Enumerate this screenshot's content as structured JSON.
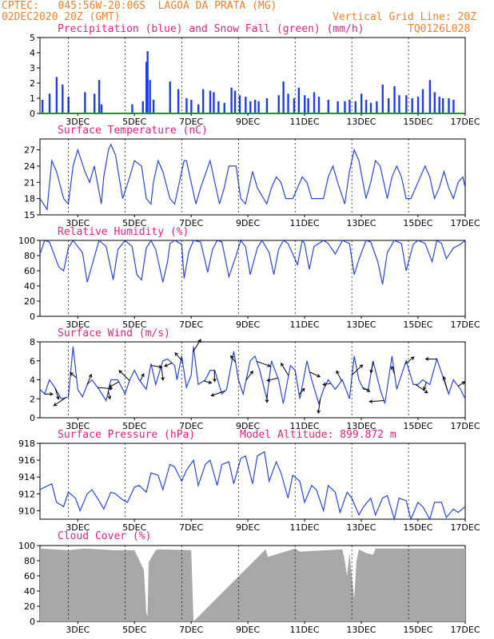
{
  "header": {
    "line1": "CPTEC:   045:56W-20:06S  LAGOA DA PRATA (MG)",
    "line2": "02DEC2020 20Z (GMT)",
    "grid_note": "Vertical Grid Line: 20Z",
    "model_code": "TQ0126L028"
  },
  "colors": {
    "series_line": "#2a45e0",
    "precip_bar": "#1f3df0",
    "snow_line": "#14a014",
    "cloud_fill": "#a8a8a8",
    "header_text": "#f07f2a",
    "title_text": "#e8207a",
    "grid_line": "#000000"
  },
  "x_axis": {
    "hour_start": 20,
    "hour_end": 380,
    "tick_labels": [
      {
        "label": "3DEC",
        "hour": 52
      },
      {
        "label": "5DEC",
        "hour": 100
      },
      {
        "label": "7DEC",
        "hour": 148
      },
      {
        "label": "9DEC",
        "hour": 196
      },
      {
        "label": "11DEC",
        "hour": 244
      },
      {
        "label": "13DEC",
        "hour": 292
      },
      {
        "label": "15DEC",
        "hour": 340
      },
      {
        "label": "17DEC",
        "hour": 380
      }
    ],
    "vertical_grid_hours": [
      44,
      92,
      140,
      188,
      236,
      284,
      332
    ]
  },
  "chart_data": [
    {
      "type": "bar",
      "id": "precip",
      "title": "Precipitation (blue) and Snow Fall (green) (mm/h)",
      "ylim": [
        0,
        5
      ],
      "yticks": [
        0,
        1,
        2,
        3,
        4,
        5
      ],
      "series": [
        {
          "name": "Precipitation",
          "x": [
            22,
            28,
            34,
            39,
            44,
            58,
            66,
            70,
            72,
            98,
            107,
            110,
            111,
            113,
            116,
            130,
            137,
            144,
            148,
            154,
            158,
            164,
            167,
            171,
            176,
            182,
            185,
            189,
            194,
            198,
            202,
            205,
            212,
            222,
            226,
            230,
            235,
            239,
            244,
            247,
            252,
            256,
            264,
            272,
            278,
            282,
            287,
            292,
            296,
            300,
            305,
            310,
            315,
            320,
            324,
            330,
            335,
            340,
            344,
            350,
            354,
            358,
            361,
            366,
            370
          ],
          "y": [
            0.9,
            1.3,
            2.4,
            1.9,
            1.1,
            1.4,
            1.3,
            2.2,
            0.6,
            0.6,
            0.8,
            3.4,
            4.1,
            2.2,
            0.9,
            2.1,
            1.6,
            1.0,
            0.9,
            0.6,
            1.6,
            1.5,
            1.4,
            0.8,
            0.7,
            1.7,
            1.5,
            1.2,
            1.1,
            0.8,
            0.9,
            0.8,
            1.0,
            1.2,
            2.1,
            1.3,
            1.0,
            1.7,
            1.2,
            1.0,
            1.4,
            1.1,
            0.9,
            0.8,
            0.8,
            0.9,
            0.8,
            1.3,
            0.9,
            0.7,
            0.8,
            1.9,
            1.0,
            1.8,
            1.2,
            1.2,
            1.0,
            1.1,
            1.6,
            2.2,
            1.4,
            1.1,
            1.0,
            1.0,
            0.9
          ]
        },
        {
          "name": "Snow Fall",
          "x": [
            20,
            380
          ],
          "y": [
            0,
            0
          ]
        }
      ]
    },
    {
      "type": "line",
      "id": "temperature",
      "title": "Surface Temperature (nC)",
      "ylim": [
        15,
        29
      ],
      "yticks": [
        15,
        18,
        21,
        24,
        27
      ],
      "series": [
        {
          "name": "Temperature",
          "x": [
            20,
            26,
            30,
            34,
            40,
            44,
            48,
            52,
            58,
            62,
            66,
            72,
            74,
            78,
            80,
            84,
            90,
            96,
            100,
            106,
            110,
            114,
            116,
            120,
            124,
            130,
            134,
            138,
            142,
            144,
            150,
            152,
            156,
            164,
            168,
            172,
            176,
            180,
            186,
            190,
            194,
            198,
            200,
            204,
            212,
            216,
            220,
            224,
            228,
            234,
            238,
            242,
            246,
            250,
            260,
            264,
            268,
            272,
            278,
            282,
            286,
            290,
            296,
            300,
            304,
            308,
            314,
            318,
            322,
            326,
            330,
            334,
            340,
            346,
            350,
            354,
            358,
            362,
            366,
            370,
            374,
            378,
            380
          ],
          "y": [
            18,
            16,
            25,
            23,
            18,
            17,
            24,
            27,
            23,
            21,
            24,
            17,
            22,
            27,
            28,
            26,
            18,
            22,
            25,
            24,
            18,
            17,
            21,
            25,
            23,
            18,
            17,
            21,
            25,
            25,
            19,
            17,
            20,
            25,
            21,
            17,
            20,
            24,
            24,
            18,
            17,
            21,
            23,
            20,
            17,
            20,
            22,
            21,
            18,
            18,
            20,
            22,
            21,
            18,
            18,
            22,
            24,
            21,
            17,
            23,
            27,
            25,
            18,
            21,
            25,
            24,
            18,
            22,
            24,
            22,
            18,
            18,
            21,
            24,
            22,
            18,
            20,
            23,
            20,
            18,
            21,
            22,
            20
          ]
        }
      ]
    },
    {
      "type": "line",
      "id": "humidity",
      "title": "Relative Humidity (%)",
      "ylim": [
        0,
        100
      ],
      "yticks": [
        0,
        20,
        40,
        60,
        80,
        100
      ],
      "series": [
        {
          "name": "Relative Humidity",
          "x": [
            20,
            24,
            28,
            36,
            40,
            44,
            48,
            56,
            60,
            66,
            70,
            76,
            82,
            86,
            92,
            98,
            102,
            106,
            110,
            114,
            118,
            124,
            128,
            130,
            134,
            140,
            142,
            146,
            150,
            156,
            162,
            166,
            170,
            174,
            180,
            186,
            190,
            194,
            198,
            204,
            208,
            214,
            218,
            222,
            226,
            230,
            238,
            242,
            244,
            248,
            252,
            260,
            264,
            270,
            276,
            282,
            286,
            290,
            296,
            300,
            306,
            310,
            314,
            320,
            326,
            330,
            336,
            340,
            346,
            352,
            356,
            360,
            364,
            370,
            376,
            380
          ],
          "y": [
            82,
            100,
            98,
            65,
            60,
            90,
            100,
            84,
            45,
            78,
            100,
            92,
            48,
            88,
            100,
            92,
            55,
            48,
            90,
            100,
            88,
            45,
            72,
            96,
            100,
            95,
            50,
            85,
            100,
            98,
            58,
            88,
            100,
            98,
            52,
            80,
            100,
            92,
            55,
            90,
            100,
            84,
            55,
            88,
            100,
            96,
            68,
            100,
            96,
            62,
            92,
            100,
            96,
            82,
            100,
            96,
            55,
            75,
            100,
            98,
            72,
            42,
            84,
            100,
            96,
            60,
            95,
            100,
            96,
            72,
            100,
            96,
            76,
            90,
            95,
            100
          ]
        }
      ]
    },
    {
      "type": "line",
      "id": "wind",
      "title": "Surface Wind (m/s)",
      "ylim": [
        0,
        8
      ],
      "yticks": [
        0,
        2,
        4,
        6,
        8
      ],
      "series": [
        {
          "name": "Wind Speed",
          "x": [
            20,
            24,
            28,
            32,
            38,
            44,
            48,
            52,
            56,
            60,
            64,
            70,
            76,
            80,
            86,
            92,
            96,
            100,
            104,
            110,
            114,
            118,
            124,
            128,
            134,
            136,
            140,
            144,
            148,
            150,
            154,
            160,
            164,
            168,
            174,
            178,
            184,
            188,
            192,
            198,
            202,
            206,
            212,
            216,
            222,
            226,
            232,
            236,
            240,
            246,
            250,
            256,
            260,
            264,
            270,
            276,
            282,
            286,
            290,
            294,
            298,
            302,
            308,
            312,
            318,
            322,
            330,
            336,
            340,
            344,
            350,
            356,
            362,
            366,
            370,
            376,
            380
          ],
          "y": [
            3,
            2.5,
            4,
            3.3,
            2,
            2.2,
            7.5,
            3,
            2.2,
            3.5,
            4,
            3,
            1.8,
            4,
            4,
            2.5,
            4,
            5,
            4,
            3,
            5.7,
            3.5,
            6,
            6.2,
            5.5,
            4,
            6.5,
            3.2,
            4.5,
            7.5,
            3.5,
            4,
            5,
            5,
            2.5,
            3,
            7,
            4,
            2.5,
            6,
            6.5,
            5,
            2,
            6,
            4,
            1.5,
            5.5,
            5,
            2,
            6,
            4,
            1.5,
            3,
            4,
            3,
            4,
            2,
            6.5,
            4,
            3,
            3,
            6,
            3,
            1.5,
            6.5,
            3,
            6,
            3.5,
            3.5,
            4,
            3.5,
            6.2,
            4,
            2.5,
            4,
            3,
            2
          ]
        }
      ],
      "arrows_count": 40
    },
    {
      "type": "line",
      "id": "pressure",
      "title": "Surface Pressure (hPa)",
      "annotation": "Model Altitude: 899.872 m",
      "ylim": [
        909,
        918
      ],
      "yticks": [
        910,
        912,
        914,
        916,
        918
      ],
      "series": [
        {
          "name": "Pressure",
          "x": [
            20,
            24,
            30,
            34,
            40,
            44,
            50,
            54,
            60,
            64,
            70,
            74,
            80,
            84,
            90,
            94,
            100,
            104,
            110,
            114,
            120,
            124,
            130,
            134,
            140,
            144,
            150,
            154,
            160,
            164,
            170,
            174,
            180,
            184,
            190,
            194,
            200,
            204,
            210,
            214,
            220,
            224,
            230,
            234,
            240,
            244,
            250,
            254,
            260,
            264,
            270,
            274,
            280,
            284,
            290,
            294,
            300,
            304,
            310,
            314,
            320,
            324,
            330,
            334,
            340,
            344,
            350,
            354,
            360,
            364,
            370,
            374,
            380
          ],
          "y": [
            912.5,
            912.8,
            913.2,
            911,
            910.5,
            912.2,
            911.5,
            910,
            912,
            912.5,
            911.2,
            910.2,
            912.2,
            912,
            911.3,
            911,
            912.8,
            913,
            912.2,
            914.5,
            914.2,
            912.5,
            915.5,
            915.2,
            913.5,
            914.8,
            916,
            913,
            915.5,
            916,
            913,
            915.5,
            915.8,
            913.2,
            916.2,
            916.5,
            913.2,
            916.5,
            917,
            913.5,
            915.8,
            914.5,
            911.5,
            914.2,
            913.5,
            911,
            913,
            912.5,
            910,
            913,
            912.2,
            909.8,
            912.2,
            911.5,
            909.5,
            910.5,
            911.5,
            909.5,
            911.5,
            911.8,
            909,
            911.5,
            911.2,
            909,
            911,
            910.5,
            909,
            911,
            911,
            909.2,
            910.2,
            909.8,
            910.5
          ]
        }
      ]
    },
    {
      "type": "bar",
      "id": "cloud",
      "title": "Cloud Cover (%)",
      "ylim": [
        0,
        100
      ],
      "yticks": [
        0,
        20,
        40,
        60,
        80,
        100
      ],
      "series": [
        {
          "name": "Cloud Cover",
          "x": [
            20,
            44,
            58,
            82,
            100,
            108,
            110,
            111,
            112,
            118,
            120,
            148,
            150,
            211,
            213,
            236,
            240,
            276,
            278,
            280,
            282,
            286,
            288,
            290,
            296,
            302,
            304,
            360,
            380
          ],
          "y": [
            96,
            94,
            96,
            94,
            94,
            68,
            12,
            6,
            78,
            94,
            95,
            94,
            0,
            95,
            85,
            96,
            92,
            95,
            80,
            60,
            90,
            30,
            80,
            95,
            90,
            88,
            96,
            96,
            96
          ]
        }
      ]
    }
  ]
}
